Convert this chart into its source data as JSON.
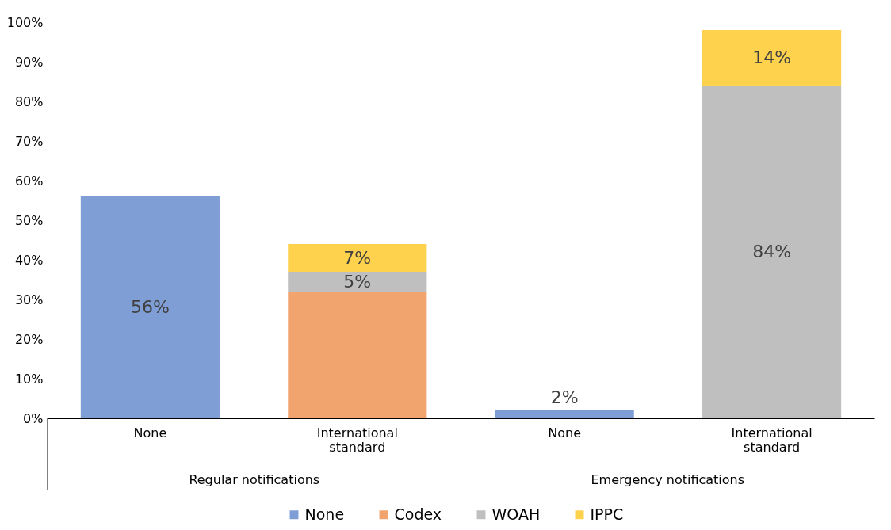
{
  "chart_data": {
    "type": "bar",
    "stacked": true,
    "categories": [
      "None",
      "International standard",
      "None",
      "International standard"
    ],
    "series": [
      {
        "name": "None",
        "color": "#7f9ed5",
        "values": [
          56,
          null,
          2,
          null
        ],
        "value_labels": [
          "56%",
          null,
          "2%",
          null
        ]
      },
      {
        "name": "Codex",
        "color": "#f2a46f",
        "values": [
          null,
          32,
          null,
          null
        ]
      },
      {
        "name": "WOAH",
        "color": "#bfbfbf",
        "values": [
          null,
          5,
          null,
          84
        ],
        "value_labels": [
          null,
          "5%",
          null,
          "84%"
        ]
      },
      {
        "name": "IPPC",
        "color": "#ffd24d",
        "values": [
          null,
          7,
          null,
          14
        ],
        "value_labels": [
          null,
          "7%",
          null,
          "14%"
        ]
      }
    ],
    "ylim": [
      0,
      100
    ],
    "yticks": [
      {
        "value": 0,
        "label": "0%"
      },
      {
        "value": 10,
        "label": "10%"
      },
      {
        "value": 20,
        "label": "20%"
      },
      {
        "value": 30,
        "label": "30%"
      },
      {
        "value": 40,
        "label": "40%"
      },
      {
        "value": 50,
        "label": "50%"
      },
      {
        "value": 60,
        "label": "60%"
      },
      {
        "value": 70,
        "label": "70%"
      },
      {
        "value": 80,
        "label": "80%"
      },
      {
        "value": 90,
        "label": "90%"
      },
      {
        "value": 100,
        "label": "100%"
      }
    ],
    "annotations": [
      "Regular notifications",
      "Emergency notifications"
    ],
    "grid": false,
    "legend": "bottom"
  }
}
